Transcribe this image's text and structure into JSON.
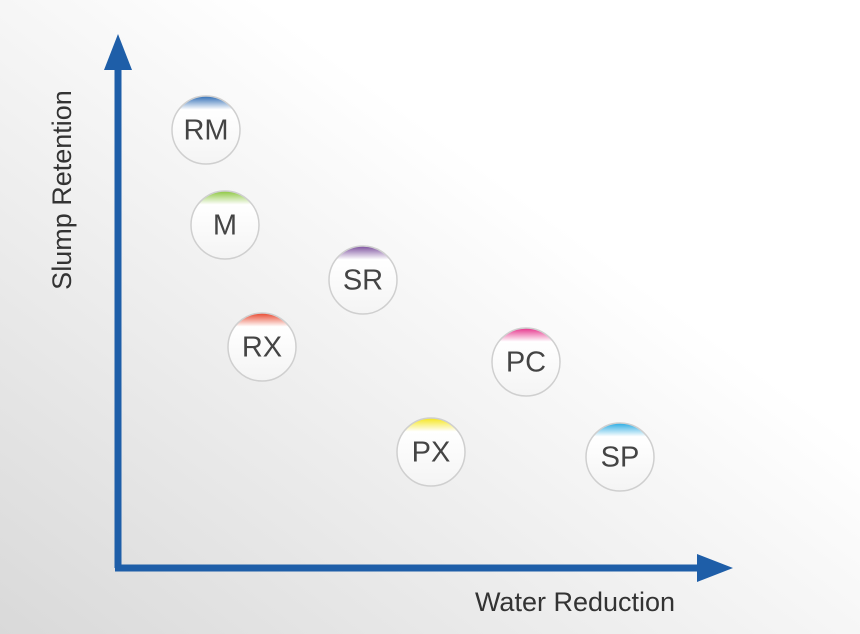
{
  "axes": {
    "x_label": "Water Reduction",
    "y_label": "Slump Retention"
  },
  "nodes": [
    {
      "label": "RM",
      "color": "#2f6db5"
    },
    {
      "label": "M",
      "color": "#8cc63f"
    },
    {
      "label": "SR",
      "color": "#7b4f9d"
    },
    {
      "label": "RX",
      "color": "#e8452c"
    },
    {
      "label": "PC",
      "color": "#e6338a"
    },
    {
      "label": "PX",
      "color": "#f5e51b"
    },
    {
      "label": "SP",
      "color": "#29abe2"
    }
  ]
}
